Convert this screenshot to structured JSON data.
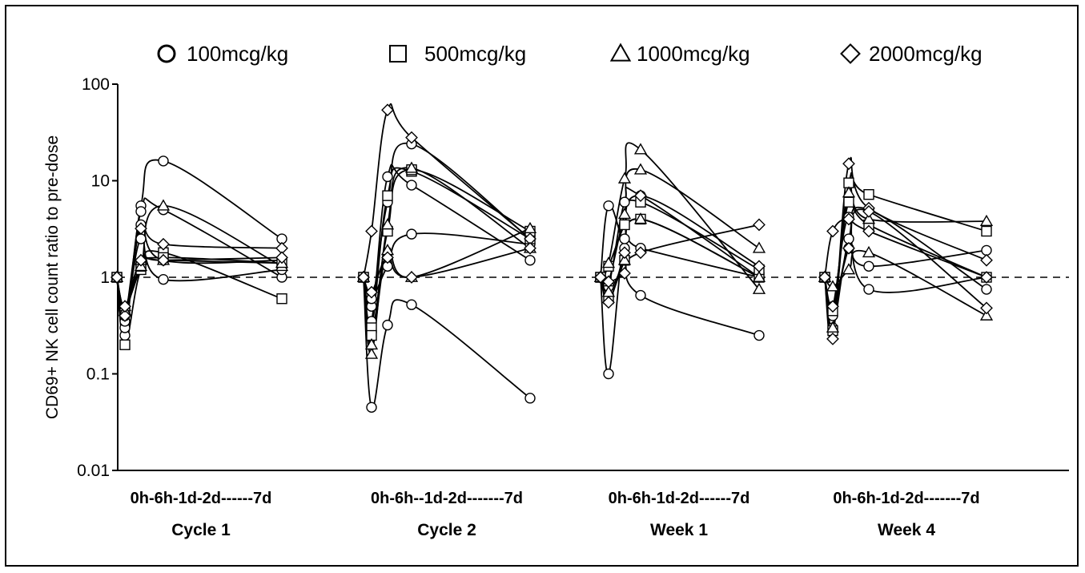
{
  "chart_data": {
    "type": "line",
    "ylabel": "CD69+ NK cell count ratio to pre-dose",
    "yscale": "log",
    "ylim": [
      0.01,
      100
    ],
    "yticks": [
      "100",
      "10",
      "1",
      "0.1",
      "0.01"
    ],
    "reference_line": 1,
    "legend": [
      {
        "label": "100mcg/kg",
        "marker": "circle"
      },
      {
        "label": "500mcg/kg",
        "marker": "square"
      },
      {
        "label": "1000mcg/kg",
        "marker": "triangle"
      },
      {
        "label": "2000mcg/kg",
        "marker": "diamond"
      }
    ],
    "timepoints": [
      "0h",
      "6h",
      "1d",
      "2d",
      "7d"
    ],
    "groups": [
      {
        "name": "Cycle 1",
        "axis_text": "0h-6h-1d-2d------7d",
        "series": [
          {
            "marker": "circle",
            "values": [
              1,
              0.25,
              5.5,
              16,
              2.5
            ]
          },
          {
            "marker": "circle",
            "values": [
              1,
              0.3,
              4.8,
              5,
              1.0
            ]
          },
          {
            "marker": "circle",
            "values": [
              1,
              0.35,
              2.5,
              0.95,
              1.2
            ]
          },
          {
            "marker": "circle",
            "values": [
              1,
              0.4,
              3.5,
              1.5,
              1.5
            ]
          },
          {
            "marker": "square",
            "values": [
              1,
              0.2,
              1.2,
              1.8,
              0.6
            ]
          },
          {
            "marker": "square",
            "values": [
              1,
              0.45,
              1.3,
              1.6,
              1.4
            ]
          },
          {
            "marker": "triangle",
            "values": [
              1,
              0.5,
              1.3,
              5.5,
              1.3
            ]
          },
          {
            "marker": "triangle",
            "values": [
              1,
              0.45,
              1.5,
              1.5,
              1.4
            ]
          },
          {
            "marker": "diamond",
            "values": [
              1,
              0.4,
              3.2,
              2.2,
              2.0
            ]
          },
          {
            "marker": "diamond",
            "values": [
              1,
              0.5,
              1.5,
              1.5,
              1.6
            ]
          }
        ]
      },
      {
        "name": "Cycle 2",
        "axis_text": "0h-6h--1d-2d-------7d",
        "series": [
          {
            "marker": "circle",
            "values": [
              1,
              0.045,
              0.32,
              0.52,
              0.056
            ]
          },
          {
            "marker": "circle",
            "values": [
              1,
              0.5,
              6,
              24,
              2.5
            ]
          },
          {
            "marker": "circle",
            "values": [
              1,
              0.35,
              11,
              9,
              1.5
            ]
          },
          {
            "marker": "circle",
            "values": [
              1,
              0.6,
              1.3,
              2.8,
              2.2
            ]
          },
          {
            "marker": "square",
            "values": [
              1,
              0.3,
              7,
              12.5,
              2.5
            ]
          },
          {
            "marker": "square",
            "values": [
              1,
              0.25,
              3,
              13,
              3.0
            ]
          },
          {
            "marker": "triangle",
            "values": [
              1,
              0.16,
              3.5,
              13.5,
              2.0
            ]
          },
          {
            "marker": "triangle",
            "values": [
              1,
              0.2,
              1.9,
              1.0,
              3.2
            ]
          },
          {
            "marker": "diamond",
            "values": [
              1,
              3.0,
              54,
              28,
              2.5
            ]
          },
          {
            "marker": "diamond",
            "values": [
              1,
              0.7,
              1.6,
              1.0,
              2.0
            ]
          }
        ]
      },
      {
        "name": "Week 1",
        "axis_text": "0h-6h-1d-2d------7d",
        "series": [
          {
            "marker": "circle",
            "values": [
              1,
              5.5,
              2.0,
              0.65,
              0.25
            ]
          },
          {
            "marker": "circle",
            "values": [
              1,
              0.1,
              2.5,
              2.0,
              1.0
            ]
          },
          {
            "marker": "circle",
            "values": [
              1,
              0.8,
              6,
              7,
              1.0
            ]
          },
          {
            "marker": "square",
            "values": [
              1,
              0.6,
              1.5,
              4,
              1.0
            ]
          },
          {
            "marker": "square",
            "values": [
              1,
              1.3,
              3.5,
              6,
              1.2
            ]
          },
          {
            "marker": "triangle",
            "values": [
              1,
              1.4,
              10.5,
              21,
              0.75
            ]
          },
          {
            "marker": "triangle",
            "values": [
              1,
              0.9,
              4.5,
              13,
              2.0
            ]
          },
          {
            "marker": "triangle",
            "values": [
              1,
              0.7,
              1.5,
              4,
              1.0
            ]
          },
          {
            "marker": "diamond",
            "values": [
              1,
              0.55,
              1.8,
              7,
              1.3
            ]
          },
          {
            "marker": "diamond",
            "values": [
              1,
              0.9,
              1.1,
              1.8,
              3.5
            ]
          }
        ]
      },
      {
        "name": "Week 4",
        "axis_text": "0h-6h-1d-2d-------7d",
        "series": [
          {
            "marker": "circle",
            "values": [
              1,
              0.4,
              2.0,
              1.3,
              1.9
            ]
          },
          {
            "marker": "circle",
            "values": [
              1,
              0.5,
              4.2,
              0.75,
              1.0
            ]
          },
          {
            "marker": "circle",
            "values": [
              1,
              0.3,
              2.5,
              5,
              0.75
            ]
          },
          {
            "marker": "square",
            "values": [
              1,
              0.28,
              9.5,
              7.2,
              3.0
            ]
          },
          {
            "marker": "square",
            "values": [
              1,
              0.45,
              6,
              3.5,
              1.0
            ]
          },
          {
            "marker": "triangle",
            "values": [
              1,
              0.3,
              7.5,
              4.0,
              3.8
            ]
          },
          {
            "marker": "triangle",
            "values": [
              1,
              0.8,
              1.2,
              1.8,
              0.4
            ]
          },
          {
            "marker": "diamond",
            "values": [
              1,
              0.23,
              15,
              5.2,
              1.5
            ]
          },
          {
            "marker": "diamond",
            "values": [
              1,
              3.0,
              4.0,
              3.0,
              1.0
            ]
          },
          {
            "marker": "diamond",
            "values": [
              1,
              0.5,
              2.0,
              4.8,
              0.48
            ]
          }
        ]
      }
    ]
  }
}
